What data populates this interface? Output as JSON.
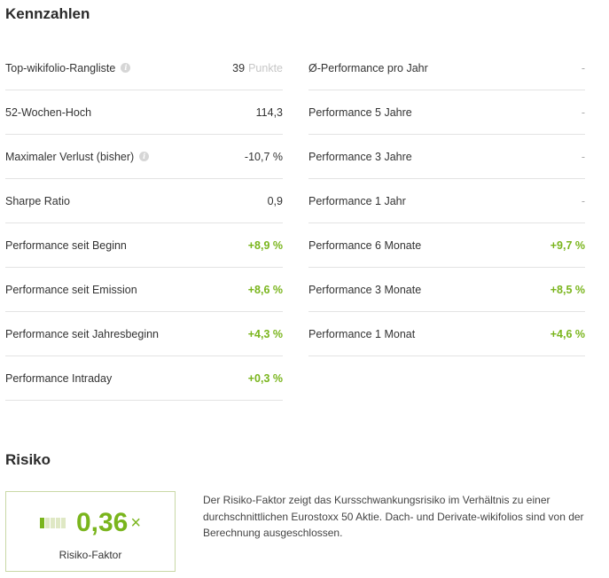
{
  "kennzahlen": {
    "title": "Kennzahlen",
    "left": [
      {
        "label": "Top-wikifolio-Rangliste",
        "info": true,
        "value": "39",
        "unit": "Punkte",
        "status": "neutral"
      },
      {
        "label": "52-Wochen-Hoch",
        "info": false,
        "value": "114,3",
        "status": "neutral"
      },
      {
        "label": "Maximaler Verlust (bisher)",
        "info": true,
        "value": "-10,7 %",
        "status": "neutral"
      },
      {
        "label": "Sharpe Ratio",
        "info": false,
        "value": "0,9",
        "status": "neutral"
      },
      {
        "label": "Performance seit Beginn",
        "info": false,
        "value": "+8,9 %",
        "status": "positive"
      },
      {
        "label": "Performance seit Emission",
        "info": false,
        "value": "+8,6 %",
        "status": "positive"
      },
      {
        "label": "Performance seit Jahresbeginn",
        "info": false,
        "value": "+4,3 %",
        "status": "positive"
      },
      {
        "label": "Performance Intraday",
        "info": false,
        "value": "+0,3 %",
        "status": "positive"
      }
    ],
    "right": [
      {
        "label": "Ø-Performance pro Jahr",
        "value": "-",
        "status": "empty"
      },
      {
        "label": "Performance 5 Jahre",
        "value": "-",
        "status": "empty"
      },
      {
        "label": "Performance 3 Jahre",
        "value": "-",
        "status": "empty"
      },
      {
        "label": "Performance 1 Jahr",
        "value": "-",
        "status": "empty"
      },
      {
        "label": "Performance 6 Monate",
        "value": "+9,7 %",
        "status": "positive"
      },
      {
        "label": "Performance 3 Monate",
        "value": "+8,5 %",
        "status": "positive"
      },
      {
        "label": "Performance 1 Monat",
        "value": "+4,6 %",
        "status": "positive"
      }
    ],
    "info_icon": "info-icon"
  },
  "risiko": {
    "title": "Risiko",
    "value": "0,36",
    "multiplier": "×",
    "label": "Risiko-Faktor",
    "bar_level": 1,
    "bar_segments": 5,
    "description": "Der Risiko-Faktor zeigt das Kursschwankungsrisiko im Verhältnis zu einer durchschnittlichen Eurostoxx 50 Aktie. Dach- und Derivate-wikifolios sind von der Berechnung ausgeschlossen."
  },
  "colors": {
    "positive": "#7ab51d",
    "divider": "#e3e3e3",
    "risk_border": "#c9d8a6"
  }
}
